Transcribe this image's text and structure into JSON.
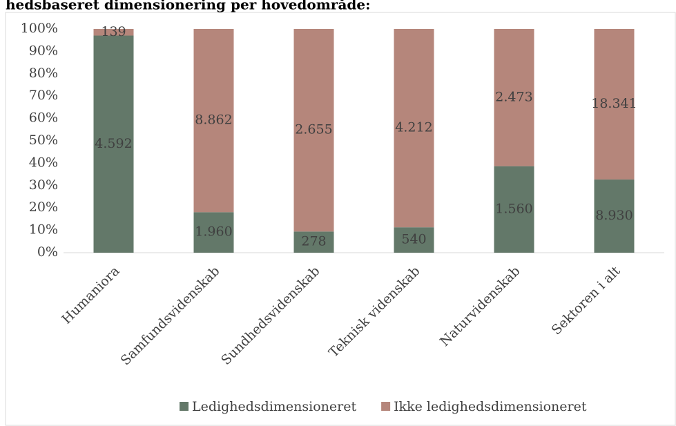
{
  "chart_data": {
    "type": "bar",
    "stacking": "percent",
    "title": "hedsbaseret dimensionering per hovedområde:",
    "categories": [
      "Humaniora",
      "Samfundsvidenskab",
      "Sundhedsvidenskab",
      "Teknisk videnskab",
      "Naturvidenskab",
      "Sektoren i alt"
    ],
    "series": [
      {
        "name": "Ledighedsdimensioneret",
        "color": "#637869",
        "values": [
          4592,
          1960,
          278,
          540,
          1560,
          8930
        ],
        "value_labels": [
          "4.592",
          "1.960",
          "278",
          "540",
          "1.560",
          "8.930"
        ]
      },
      {
        "name": "Ikke ledighedsdimensioneret",
        "color": "#b5867b",
        "values": [
          139,
          8862,
          2655,
          4212,
          2473,
          18341
        ],
        "value_labels": [
          "139",
          "8.862",
          "2.655",
          "4.212",
          "2.473",
          "18.341"
        ]
      }
    ],
    "ylim": [
      0,
      100
    ],
    "yticks": [
      {
        "value": 0,
        "label": "0%"
      },
      {
        "value": 10,
        "label": "10%"
      },
      {
        "value": 20,
        "label": "20%"
      },
      {
        "value": 30,
        "label": "30%"
      },
      {
        "value": 40,
        "label": "40%"
      },
      {
        "value": 50,
        "label": "50%"
      },
      {
        "value": 60,
        "label": "60%"
      },
      {
        "value": 70,
        "label": "70%"
      },
      {
        "value": 80,
        "label": "80%"
      },
      {
        "value": 90,
        "label": "90%"
      },
      {
        "value": 100,
        "label": "100%"
      }
    ],
    "legend": "bottom"
  }
}
